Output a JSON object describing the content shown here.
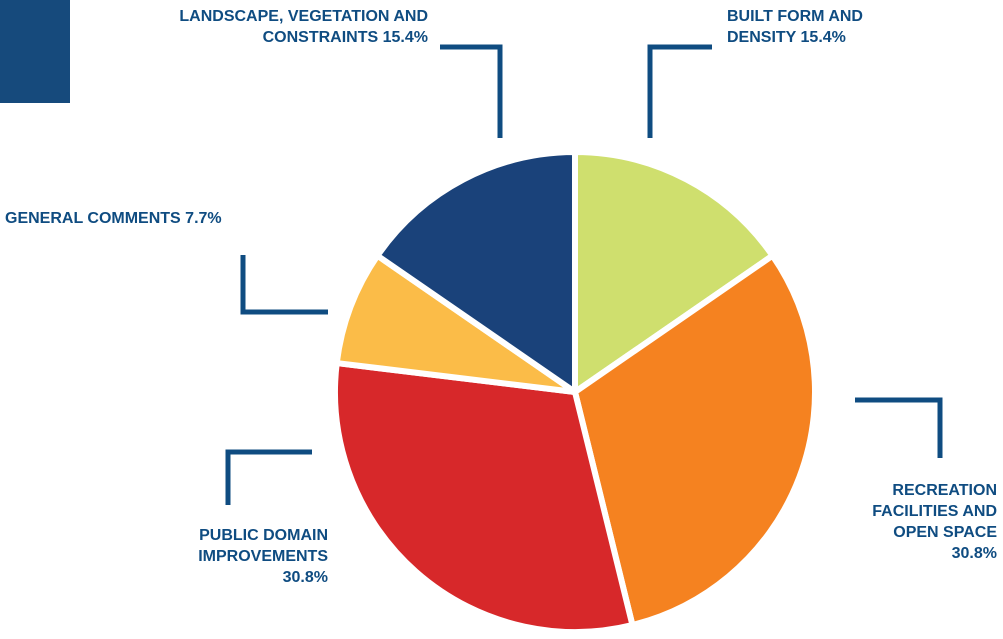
{
  "chart_data": {
    "type": "pie",
    "categories": [
      "BUILT FORM AND DENSITY",
      "RECREATION FACILITIES AND OPEN SPACE",
      "PUBLIC DOMAIN IMPROVEMENTS",
      "GENERAL COMMENTS",
      "LANDSCAPE, VEGETATION AND CONSTRAINTS"
    ],
    "values": [
      15.4,
      30.8,
      30.8,
      7.7,
      15.4
    ],
    "value_labels": [
      "15.4%",
      "30.8%",
      "30.8%",
      "7.7%",
      "15.4%"
    ],
    "colors": [
      "#cfdf6e",
      "#f58220",
      "#d7282a",
      "#fbbc48",
      "#1a427a"
    ]
  }
}
